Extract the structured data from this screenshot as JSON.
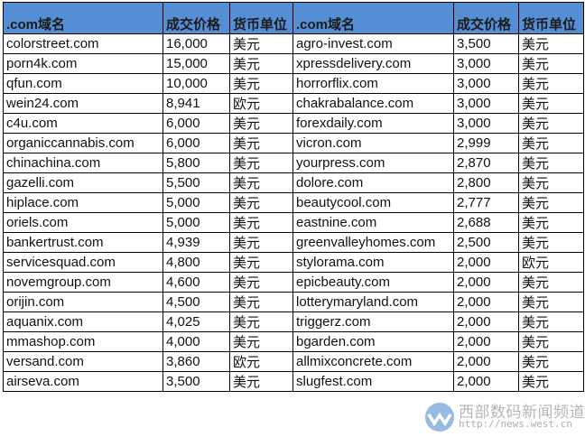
{
  "headers": [
    ".com域名",
    "成交价格",
    "货币单位",
    ".com域名",
    "成交价格",
    "货币单位"
  ],
  "rows": [
    [
      "colorstreet.com",
      "16,000",
      "美元",
      "agro-invest.com",
      "3,500",
      "美元"
    ],
    [
      "porn4k.com",
      "15,000",
      "美元",
      "xpressdelivery.com",
      "3,000",
      "美元"
    ],
    [
      "qfun.com",
      "10,000",
      "美元",
      "horrorflix.com",
      "3,000",
      "美元"
    ],
    [
      "wein24.com",
      "8,941",
      "欧元",
      "chakrabalance.com",
      "3,000",
      "美元"
    ],
    [
      "c4u.com",
      "6,000",
      "美元",
      "forexdaily.com",
      "3,000",
      "美元"
    ],
    [
      "organiccannabis.com",
      "6,000",
      "美元",
      "vicron.com",
      "2,999",
      "美元"
    ],
    [
      "chinachina.com",
      "5,800",
      "美元",
      "yourpress.com",
      "2,870",
      "美元"
    ],
    [
      "gazelli.com",
      "5,500",
      "美元",
      "dolore.com",
      "2,800",
      "美元"
    ],
    [
      "hiplace.com",
      "5,000",
      "美元",
      "beautycool.com",
      "2,777",
      "美元"
    ],
    [
      "oriels.com",
      "5,000",
      "美元",
      "eastnine.com",
      "2,688",
      "美元"
    ],
    [
      "bankertrust.com",
      "4,939",
      "美元",
      "greenvalleyhomes.com",
      "2,500",
      "美元"
    ],
    [
      "servicesquad.com",
      "4,800",
      "美元",
      "stylorama.com",
      "2,000",
      "欧元"
    ],
    [
      "novemgroup.com",
      "4,600",
      "美元",
      "epicbeauty.com",
      "2,000",
      "美元"
    ],
    [
      "orijin.com",
      "4,500",
      "美元",
      "lotterymaryland.com",
      "2,000",
      "美元"
    ],
    [
      "aquanix.com",
      "4,025",
      "美元",
      "triggerz.com",
      "2,000",
      "美元"
    ],
    [
      "mmashop.com",
      "4,000",
      "美元",
      "bgarden.com",
      "2,000",
      "美元"
    ],
    [
      "versand.com",
      "3,860",
      "欧元",
      "allmixconcrete.com",
      "2,000",
      "美元"
    ],
    [
      "airseva.com",
      "3,500",
      "美元",
      "slugfest.com",
      "2,000",
      "美元"
    ]
  ],
  "colors": {
    "header_bg": "#558ed5"
  },
  "watermark": {
    "text": "西部数码新闻频道",
    "url": "http://news.west.cn",
    "icon": "west-logo-icon"
  }
}
